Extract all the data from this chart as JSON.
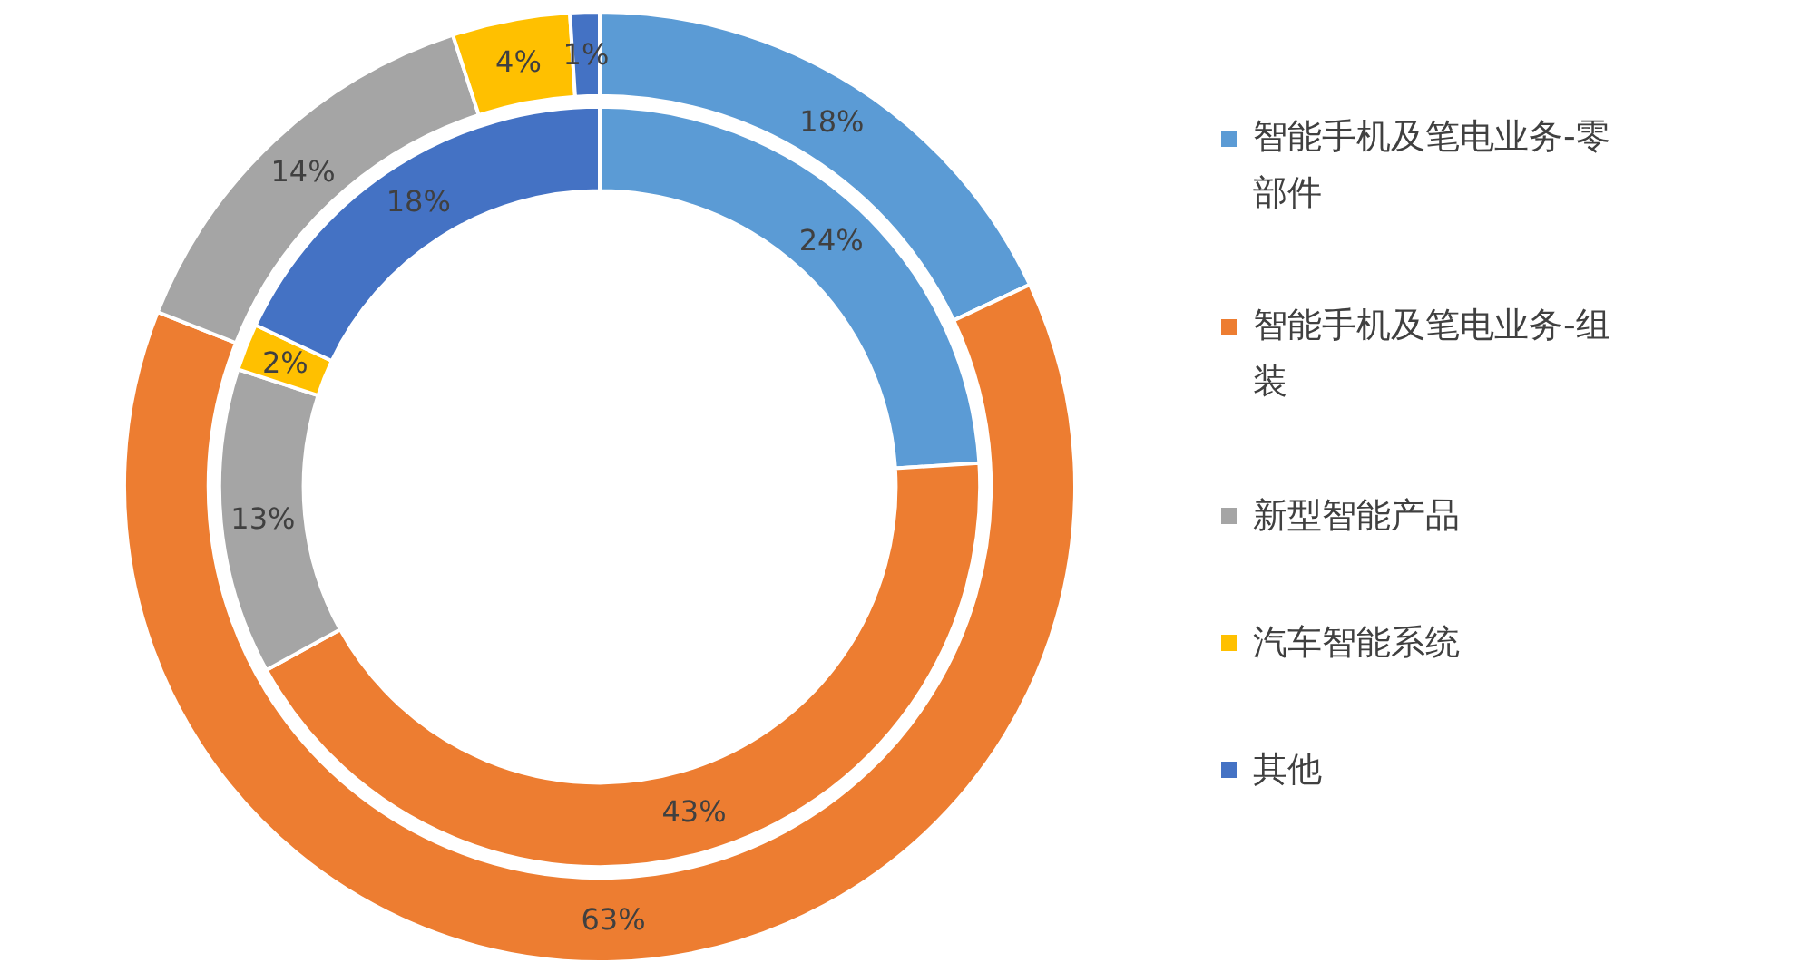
{
  "chart_data": {
    "type": "donut",
    "categories": [
      "智能手机及笔电业务-零部件",
      "智能手机及笔电业务-组装",
      "新型智能产品",
      "汽车智能系统",
      "其他"
    ],
    "colors": [
      "#5b9bd5",
      "#ed7d31",
      "#a5a5a5",
      "#ffc000",
      "#4472c4"
    ],
    "series": [
      {
        "values": [
          18,
          63,
          14,
          4,
          1
        ],
        "value_labels": [
          "18%",
          "63%",
          "14%",
          "4%",
          "1%"
        ]
      },
      {
        "values": [
          24,
          43,
          13,
          2,
          18
        ],
        "value_labels": [
          "24%",
          "43%",
          "13%",
          "2%",
          "18%"
        ]
      }
    ],
    "legend": "right"
  }
}
